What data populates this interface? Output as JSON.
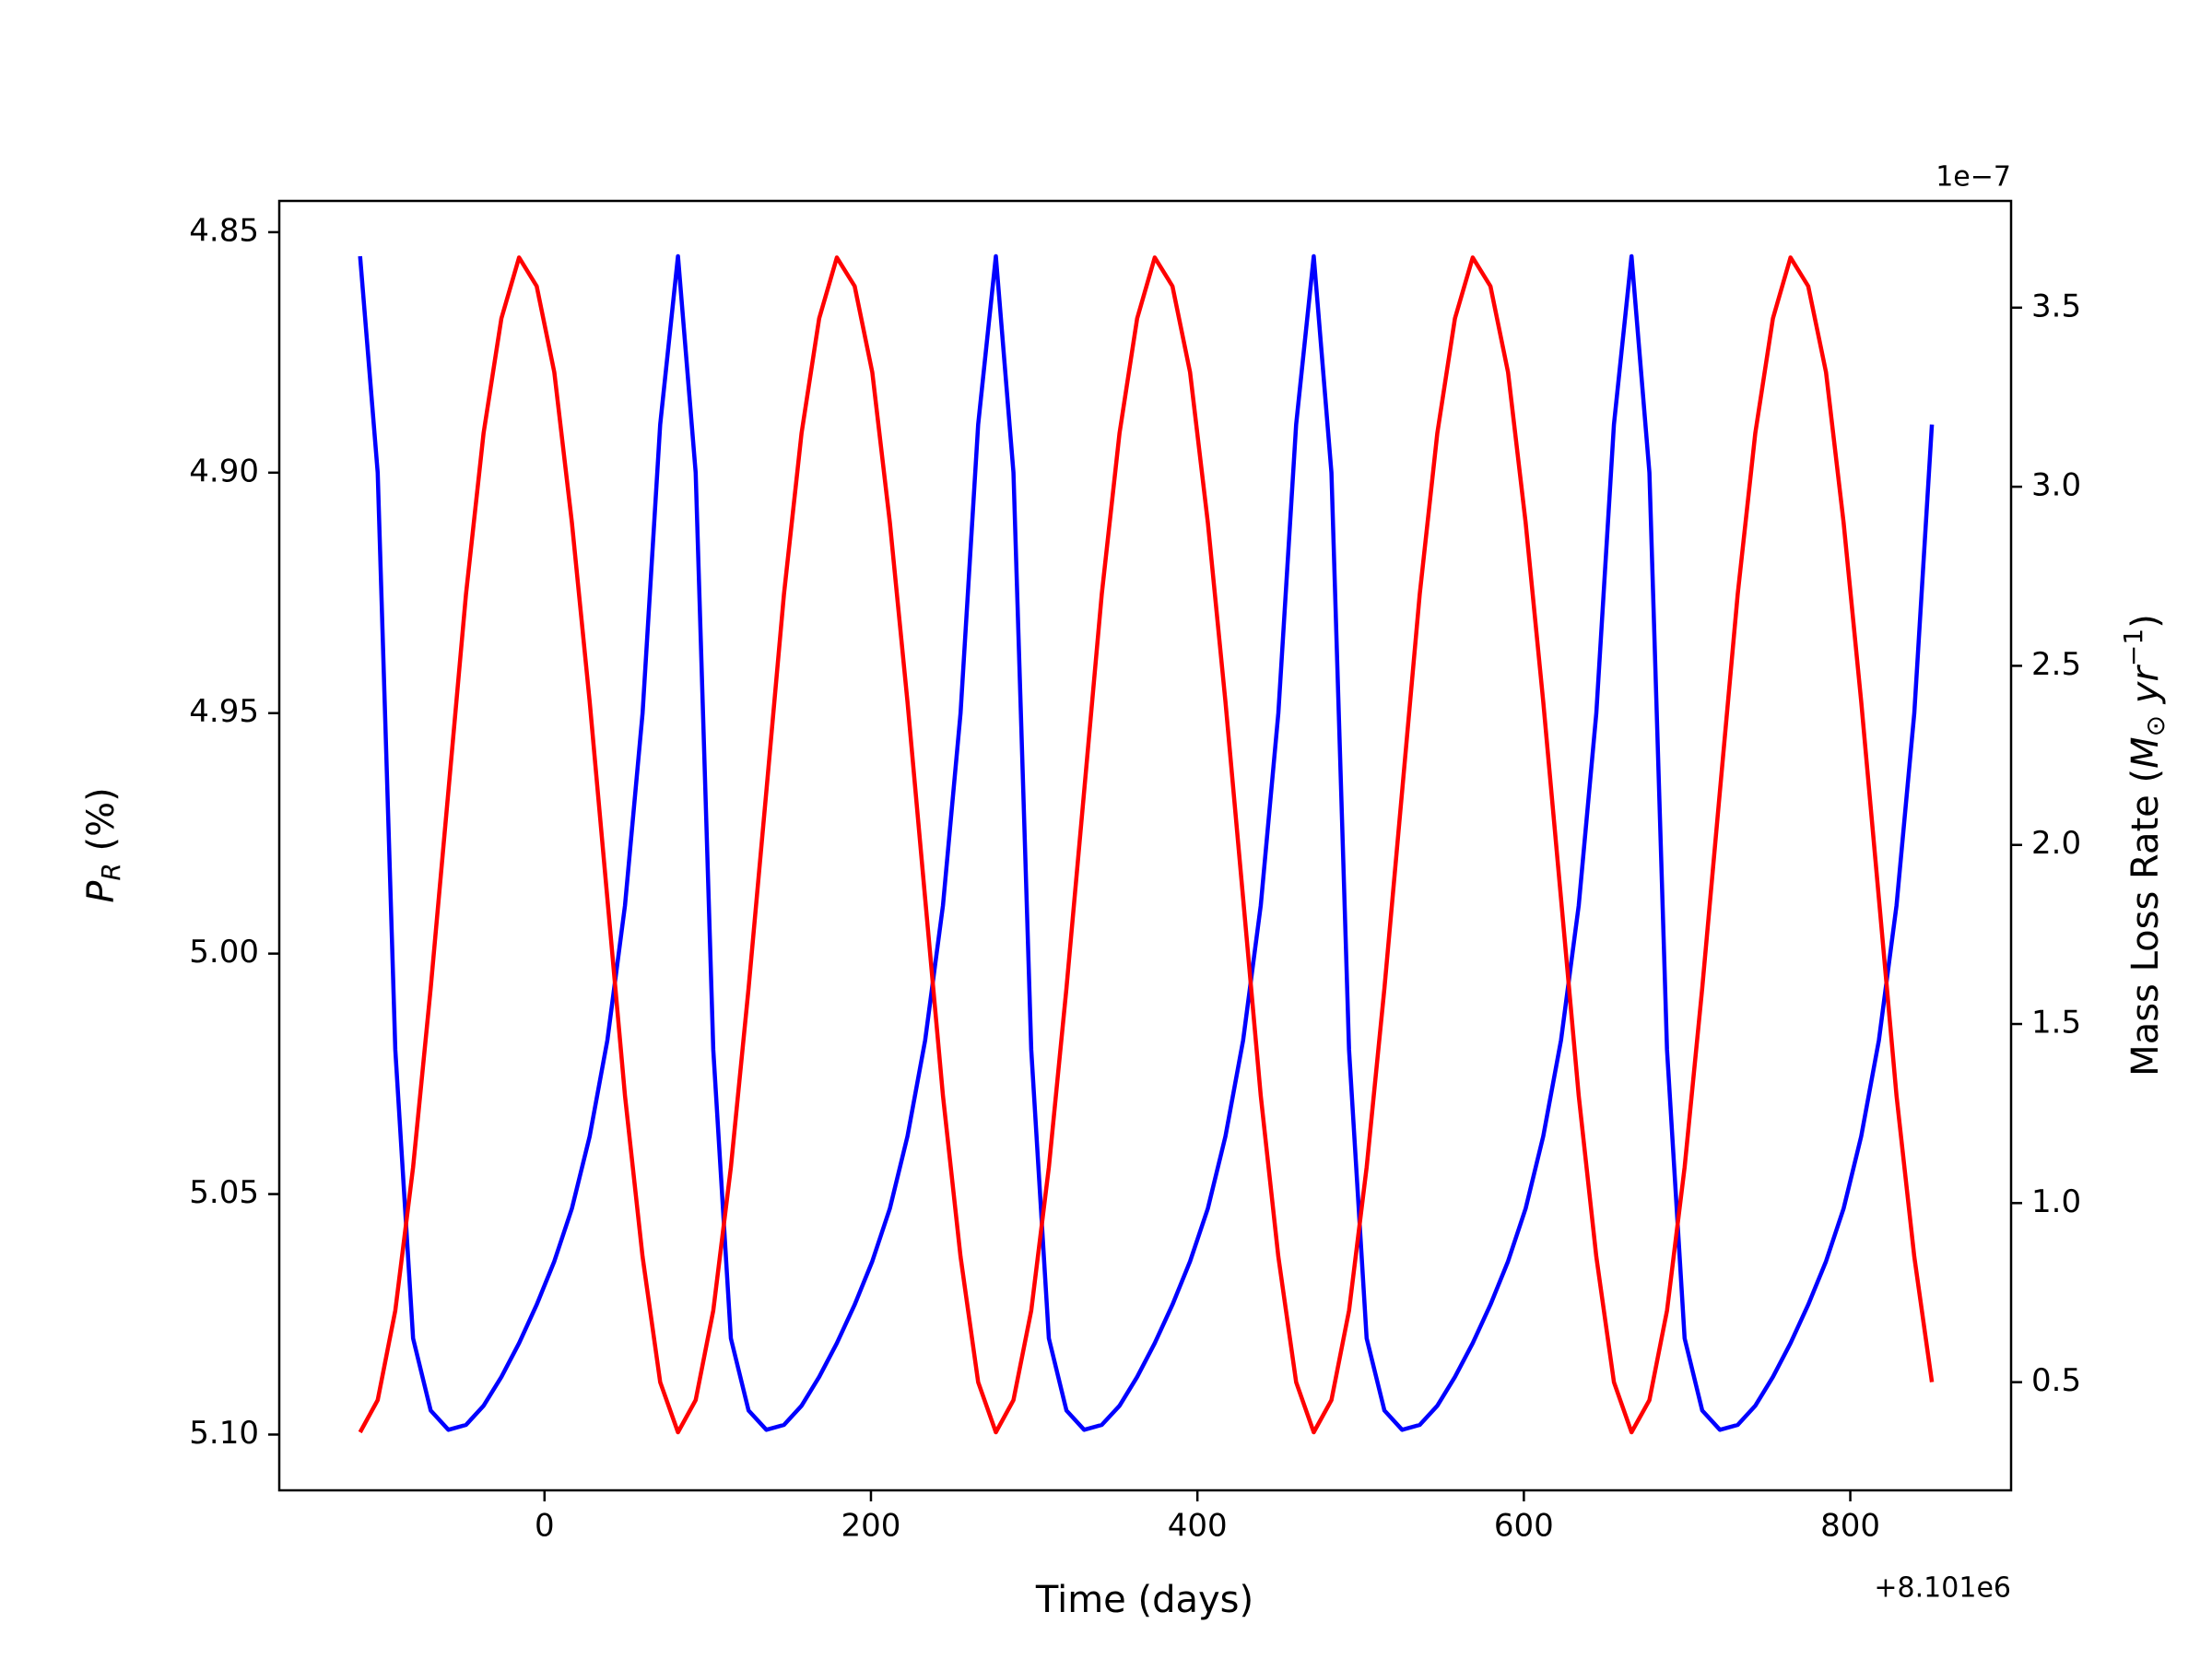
{
  "chart_data": {
    "type": "line",
    "x_label": "Time (days)",
    "x_offset_label": "+8.101e6",
    "y_label": {
      "symbol": "P",
      "subscript": "R",
      "unit": " (%)"
    },
    "y2_label": {
      "text": "Mass Loss Rate (",
      "symbol": "M",
      "subscript": "⊙",
      "mid": " yr",
      "superscript": "−1",
      "end": ")"
    },
    "y2_offset_label": "1e−7",
    "xlim": [
      -162.5,
      898.5
    ],
    "xticks": [
      0,
      200,
      400,
      600,
      800
    ],
    "ylim": [
      5.1116,
      4.8435
    ],
    "yticks": [
      {
        "value": 4.85,
        "label": "4.85"
      },
      {
        "value": 4.9,
        "label": "4.90"
      },
      {
        "value": 4.95,
        "label": "4.95"
      },
      {
        "value": 5.0,
        "label": "5.00"
      },
      {
        "value": 5.05,
        "label": "5.05"
      },
      {
        "value": 5.1,
        "label": "5.10"
      }
    ],
    "y2lim": [
      0.198,
      3.798
    ],
    "y2ticks": [
      0.5,
      {
        "value": 1.0,
        "label": "1.0"
      },
      1.5,
      {
        "value": 2.0,
        "label": "2.0"
      },
      2.5,
      {
        "value": 3.0,
        "label": "3.0"
      },
      3.5
    ],
    "x": [
      -113.0,
      -102.2,
      -91.4,
      -80.5,
      -69.7,
      -58.9,
      -48.1,
      -37.3,
      -26.4,
      -15.6,
      -4.8,
      6.0,
      16.8,
      27.7,
      38.5,
      49.3,
      60.1,
      70.9,
      81.8,
      92.6,
      103.4,
      114.2,
      125.0,
      135.9,
      146.7,
      157.5,
      168.3,
      179.1,
      190.0,
      200.8,
      211.6,
      222.4,
      233.2,
      244.1,
      254.9,
      265.7,
      276.5,
      287.3,
      298.2,
      309.0,
      319.8,
      330.6,
      341.4,
      352.3,
      363.1,
      373.9,
      384.7,
      395.5,
      406.4,
      417.2,
      428.0,
      438.8,
      449.6,
      460.5,
      471.3,
      482.1,
      492.9,
      503.7,
      514.6,
      525.4,
      536.2,
      547.0,
      557.8,
      568.7,
      579.5,
      590.3,
      601.1,
      611.9,
      622.8,
      633.6,
      644.4,
      655.2,
      666.0,
      676.9,
      687.7,
      698.5,
      709.3,
      720.1,
      731.0,
      741.8,
      752.6,
      763.4,
      774.2,
      785.1,
      795.9,
      806.7,
      817.5,
      828.3,
      839.2,
      850.0
    ],
    "series": [
      {
        "name": "P_R",
        "color": "#0000ff",
        "axis": "y",
        "values": [
          4.855,
          4.9,
          5.02,
          5.08,
          5.095,
          5.099,
          5.098,
          5.094,
          5.088,
          5.081,
          5.073,
          5.064,
          5.053,
          5.038,
          5.018,
          4.99,
          4.95,
          4.89,
          4.855,
          4.9,
          5.02,
          5.08,
          5.095,
          5.099,
          5.098,
          5.094,
          5.088,
          5.081,
          5.073,
          5.064,
          5.053,
          5.038,
          5.018,
          4.99,
          4.95,
          4.89,
          4.855,
          4.9,
          5.02,
          5.08,
          5.095,
          5.099,
          5.098,
          5.094,
          5.088,
          5.081,
          5.073,
          5.064,
          5.053,
          5.038,
          5.018,
          4.99,
          4.95,
          4.89,
          4.855,
          4.9,
          5.02,
          5.08,
          5.095,
          5.099,
          5.098,
          5.094,
          5.088,
          5.081,
          5.073,
          5.064,
          5.053,
          5.038,
          5.018,
          4.99,
          4.95,
          4.89,
          4.855,
          4.9,
          5.02,
          5.08,
          5.095,
          5.099,
          5.098,
          5.094,
          5.088,
          5.081,
          5.073,
          5.064,
          5.053,
          5.038,
          5.018,
          4.99,
          4.95,
          4.89
        ]
      },
      {
        "name": "Mass Loss Rate",
        "color": "#ff0000",
        "axis": "y2",
        "values": [
          0.36,
          0.45,
          0.7,
          1.1,
          1.6,
          2.15,
          2.7,
          3.15,
          3.47,
          3.64,
          3.56,
          3.32,
          2.9,
          2.4,
          1.85,
          1.3,
          0.85,
          0.5,
          0.36,
          0.45,
          0.7,
          1.1,
          1.6,
          2.15,
          2.7,
          3.15,
          3.47,
          3.64,
          3.56,
          3.32,
          2.9,
          2.4,
          1.85,
          1.3,
          0.85,
          0.5,
          0.36,
          0.45,
          0.7,
          1.1,
          1.6,
          2.15,
          2.7,
          3.15,
          3.47,
          3.64,
          3.56,
          3.32,
          2.9,
          2.4,
          1.85,
          1.3,
          0.85,
          0.5,
          0.36,
          0.45,
          0.7,
          1.1,
          1.6,
          2.15,
          2.7,
          3.15,
          3.47,
          3.64,
          3.56,
          3.32,
          2.9,
          2.4,
          1.85,
          1.3,
          0.85,
          0.5,
          0.36,
          0.45,
          0.7,
          1.1,
          1.6,
          2.15,
          2.7,
          3.15,
          3.47,
          3.64,
          3.56,
          3.32,
          2.9,
          2.4,
          1.85,
          1.3,
          0.85,
          0.5
        ]
      }
    ]
  }
}
